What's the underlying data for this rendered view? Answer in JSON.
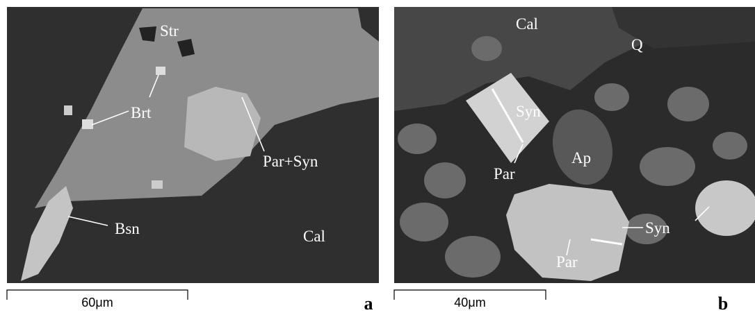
{
  "panels": [
    {
      "label": "a",
      "scale_bar": "60μm",
      "annotations": [
        "Str",
        "Brt",
        "Par+Syn",
        "Bsn",
        "Cal"
      ]
    },
    {
      "label": "b",
      "scale_bar": "40μm",
      "annotations": [
        "Cal",
        "Q",
        "Syn",
        "Ap",
        "Par",
        "Syn",
        "Par"
      ]
    }
  ]
}
